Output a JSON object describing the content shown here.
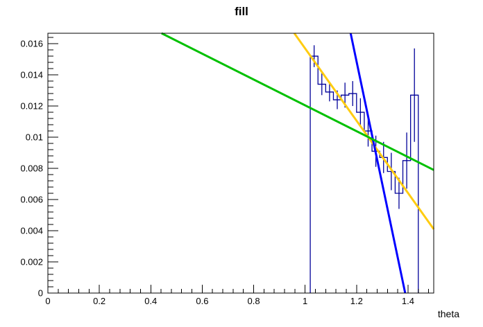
{
  "chart_data": {
    "type": "line",
    "title": "fill",
    "xlabel": "theta",
    "ylabel": "",
    "xlim": [
      0,
      1.5
    ],
    "ylim": [
      0,
      0.01667
    ],
    "grid": false,
    "legend": false,
    "axis_color": "#000000",
    "x_major_ticks": [
      0,
      0.2,
      0.4,
      0.6,
      0.8,
      1,
      1.2,
      1.4
    ],
    "x_minor_step": 0.04,
    "y_major_ticks": [
      0,
      0.002,
      0.004,
      0.006,
      0.008,
      0.01,
      0.012,
      0.014,
      0.016
    ],
    "y_minor_step": 0.0004,
    "histogram": {
      "name": "theta-histogram",
      "color": "#000099",
      "bin_start": 1.02,
      "bin_width": 0.03,
      "values": [
        0.0152,
        0.0134,
        0.0129,
        0.0124,
        0.0127,
        0.0128,
        0.0116,
        0.0104,
        0.0091,
        0.0087,
        0.0078,
        0.0064,
        0.0085,
        0.0127
      ],
      "errors": [
        0.0007,
        0.0007,
        0.0006,
        0.0006,
        0.0008,
        0.0008,
        0.0009,
        0.001,
        0.001,
        0.001,
        0.0012,
        0.001,
        0.0018,
        0.003
      ]
    },
    "fit_lines": [
      {
        "name": "yellow-fit",
        "color": "#ffcc11",
        "x": [
          0.958,
          1.5
        ],
        "y": [
          0.01667,
          0.0041
        ]
      },
      {
        "name": "blue-fit",
        "color": "#0000ff",
        "x": [
          1.177,
          1.389
        ],
        "y": [
          0.01667,
          0
        ]
      },
      {
        "name": "green-fit",
        "color": "#00c000",
        "x": [
          0.442,
          1.5
        ],
        "y": [
          0.01667,
          0.0079
        ]
      }
    ]
  }
}
